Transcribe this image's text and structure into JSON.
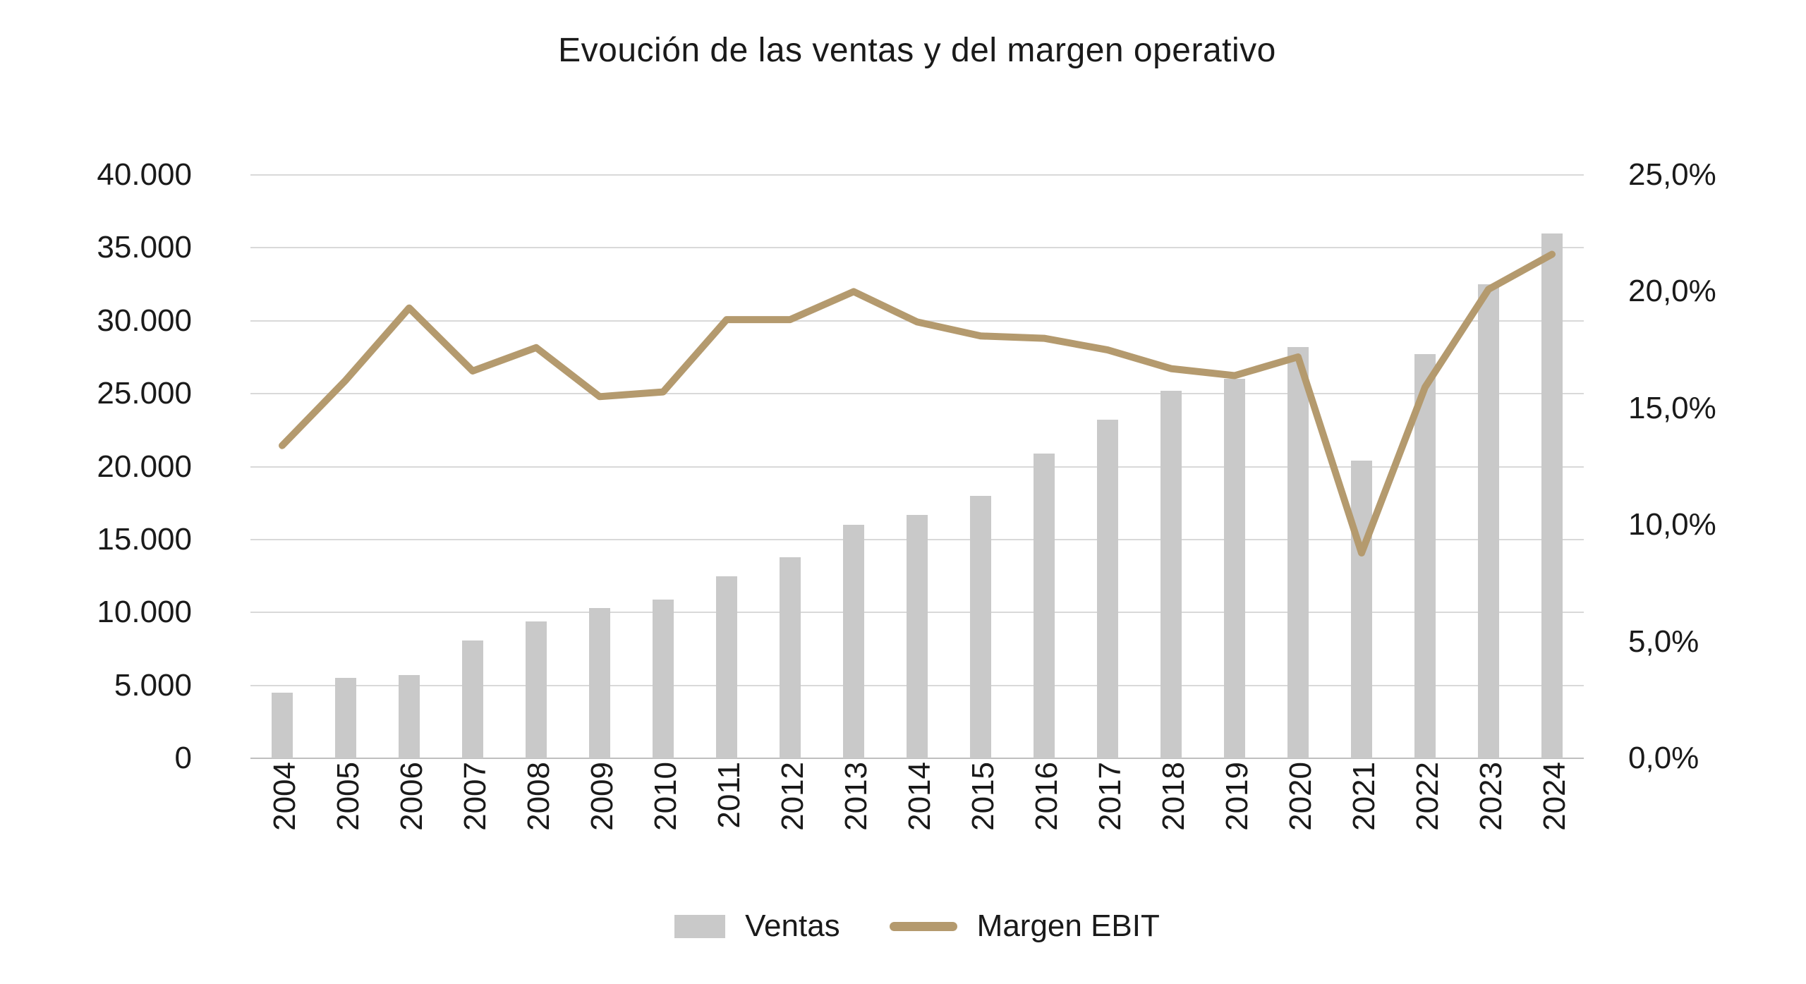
{
  "title": "Evoución de las ventas y del margen operativo",
  "legend": {
    "ventas_label": "Ventas",
    "margen_label": "Margen EBIT"
  },
  "left_axis": {
    "labels": [
      "0",
      "5.000",
      "10.000",
      "15.000",
      "20.000",
      "25.000",
      "30.000",
      "35.000",
      "40.000"
    ]
  },
  "right_axis": {
    "labels": [
      "0,0%",
      "5,0%",
      "10,0%",
      "15,0%",
      "20,0%",
      "25,0%"
    ]
  },
  "colors": {
    "bar": "#c9c9c9",
    "line": "#b49a6e",
    "grid": "#d9d9d9",
    "axis_line": "#bfbfbf",
    "text": "#1a1a1a"
  },
  "chart_data": {
    "type": "combo",
    "title": "Evoución de las ventas y del margen operativo",
    "categories": [
      "2004",
      "2005",
      "2006",
      "2007",
      "2008",
      "2009",
      "2010",
      "2011",
      "2012",
      "2013",
      "2014",
      "2015",
      "2016",
      "2017",
      "2018",
      "2019",
      "2020",
      "2021",
      "2022",
      "2023",
      "2024"
    ],
    "series": [
      {
        "name": "Ventas",
        "type": "bar",
        "axis": "left",
        "values": [
          4500,
          5500,
          5700,
          8100,
          9400,
          10300,
          10900,
          12500,
          13800,
          16000,
          16700,
          18000,
          20900,
          23200,
          25200,
          26000,
          28200,
          20400,
          27700,
          32500,
          36000
        ]
      },
      {
        "name": "Margen EBIT",
        "type": "line",
        "axis": "right",
        "values": [
          13.4,
          16.2,
          19.3,
          16.6,
          17.6,
          15.5,
          15.7,
          18.8,
          18.8,
          20.0,
          18.7,
          18.1,
          18.0,
          17.5,
          16.7,
          16.4,
          17.2,
          8.8,
          15.9,
          20.1,
          21.6
        ]
      }
    ],
    "left_ylim": [
      0,
      40000
    ],
    "left_tick_step": 5000,
    "right_ylim": [
      0,
      25
    ],
    "right_tick_step": 5,
    "grid": true,
    "legend_position": "bottom",
    "x_label_rotation": -90
  }
}
